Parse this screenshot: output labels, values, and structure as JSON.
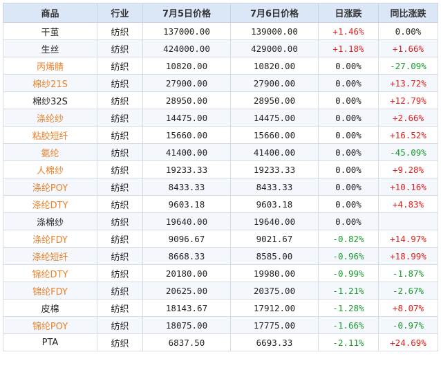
{
  "headers": [
    "商品",
    "行业",
    "7月5日价格",
    "7月6日价格",
    "日涨跌",
    "同比涨跌"
  ],
  "colors": {
    "link": "#e8822a",
    "up": "#e0201c",
    "down": "#1a9a2e",
    "header_bg": "#dbe7f7"
  },
  "rows": [
    {
      "name": "干茧",
      "link": false,
      "industry": "纺织",
      "p1": "137000.00",
      "p2": "139000.00",
      "day": "+1.46%",
      "day_dir": "up",
      "yoy": "0.00%",
      "yoy_dir": "flat"
    },
    {
      "name": "生丝",
      "link": false,
      "industry": "纺织",
      "p1": "424000.00",
      "p2": "429000.00",
      "day": "+1.18%",
      "day_dir": "up",
      "yoy": "+1.66%",
      "yoy_dir": "up"
    },
    {
      "name": "丙烯腈",
      "link": true,
      "industry": "纺织",
      "p1": "10820.00",
      "p2": "10820.00",
      "day": "0.00%",
      "day_dir": "flat",
      "yoy": "-27.09%",
      "yoy_dir": "down"
    },
    {
      "name": "棉纱21S",
      "link": true,
      "industry": "纺织",
      "p1": "27900.00",
      "p2": "27900.00",
      "day": "0.00%",
      "day_dir": "flat",
      "yoy": "+13.72%",
      "yoy_dir": "up"
    },
    {
      "name": "棉纱32S",
      "link": false,
      "industry": "纺织",
      "p1": "28950.00",
      "p2": "28950.00",
      "day": "0.00%",
      "day_dir": "flat",
      "yoy": "+12.79%",
      "yoy_dir": "up"
    },
    {
      "name": "涤纶纱",
      "link": true,
      "industry": "纺织",
      "p1": "14475.00",
      "p2": "14475.00",
      "day": "0.00%",
      "day_dir": "flat",
      "yoy": "+2.66%",
      "yoy_dir": "up"
    },
    {
      "name": "粘胶短纤",
      "link": true,
      "industry": "纺织",
      "p1": "15660.00",
      "p2": "15660.00",
      "day": "0.00%",
      "day_dir": "flat",
      "yoy": "+16.52%",
      "yoy_dir": "up"
    },
    {
      "name": "氨纶",
      "link": true,
      "industry": "纺织",
      "p1": "41400.00",
      "p2": "41400.00",
      "day": "0.00%",
      "day_dir": "flat",
      "yoy": "-45.09%",
      "yoy_dir": "down"
    },
    {
      "name": "人棉纱",
      "link": true,
      "industry": "纺织",
      "p1": "19233.33",
      "p2": "19233.33",
      "day": "0.00%",
      "day_dir": "flat",
      "yoy": "+9.28%",
      "yoy_dir": "up"
    },
    {
      "name": "涤纶POY",
      "link": true,
      "industry": "纺织",
      "p1": "8433.33",
      "p2": "8433.33",
      "day": "0.00%",
      "day_dir": "flat",
      "yoy": "+10.16%",
      "yoy_dir": "up"
    },
    {
      "name": "涤纶DTY",
      "link": true,
      "industry": "纺织",
      "p1": "9603.18",
      "p2": "9603.18",
      "day": "0.00%",
      "day_dir": "flat",
      "yoy": "+4.83%",
      "yoy_dir": "up"
    },
    {
      "name": "涤棉纱",
      "link": false,
      "industry": "纺织",
      "p1": "19640.00",
      "p2": "19640.00",
      "day": "0.00%",
      "day_dir": "flat",
      "yoy": "",
      "yoy_dir": "flat"
    },
    {
      "name": "涤纶FDY",
      "link": true,
      "industry": "纺织",
      "p1": "9096.67",
      "p2": "9021.67",
      "day": "-0.82%",
      "day_dir": "down",
      "yoy": "+14.97%",
      "yoy_dir": "up"
    },
    {
      "name": "涤纶短纤",
      "link": true,
      "industry": "纺织",
      "p1": "8668.33",
      "p2": "8585.00",
      "day": "-0.96%",
      "day_dir": "down",
      "yoy": "+18.99%",
      "yoy_dir": "up"
    },
    {
      "name": "锦纶DTY",
      "link": true,
      "industry": "纺织",
      "p1": "20180.00",
      "p2": "19980.00",
      "day": "-0.99%",
      "day_dir": "down",
      "yoy": "-1.87%",
      "yoy_dir": "down"
    },
    {
      "name": "锦纶FDY",
      "link": true,
      "industry": "纺织",
      "p1": "20625.00",
      "p2": "20375.00",
      "day": "-1.21%",
      "day_dir": "down",
      "yoy": "-2.67%",
      "yoy_dir": "down"
    },
    {
      "name": "皮棉",
      "link": false,
      "industry": "纺织",
      "p1": "18143.67",
      "p2": "17912.00",
      "day": "-1.28%",
      "day_dir": "down",
      "yoy": "+8.07%",
      "yoy_dir": "up"
    },
    {
      "name": "锦纶POY",
      "link": true,
      "industry": "纺织",
      "p1": "18075.00",
      "p2": "17775.00",
      "day": "-1.66%",
      "day_dir": "down",
      "yoy": "-0.97%",
      "yoy_dir": "down"
    },
    {
      "name": "PTA",
      "link": false,
      "industry": "纺织",
      "p1": "6837.50",
      "p2": "6693.33",
      "day": "-2.11%",
      "day_dir": "down",
      "yoy": "+24.69%",
      "yoy_dir": "up"
    }
  ]
}
